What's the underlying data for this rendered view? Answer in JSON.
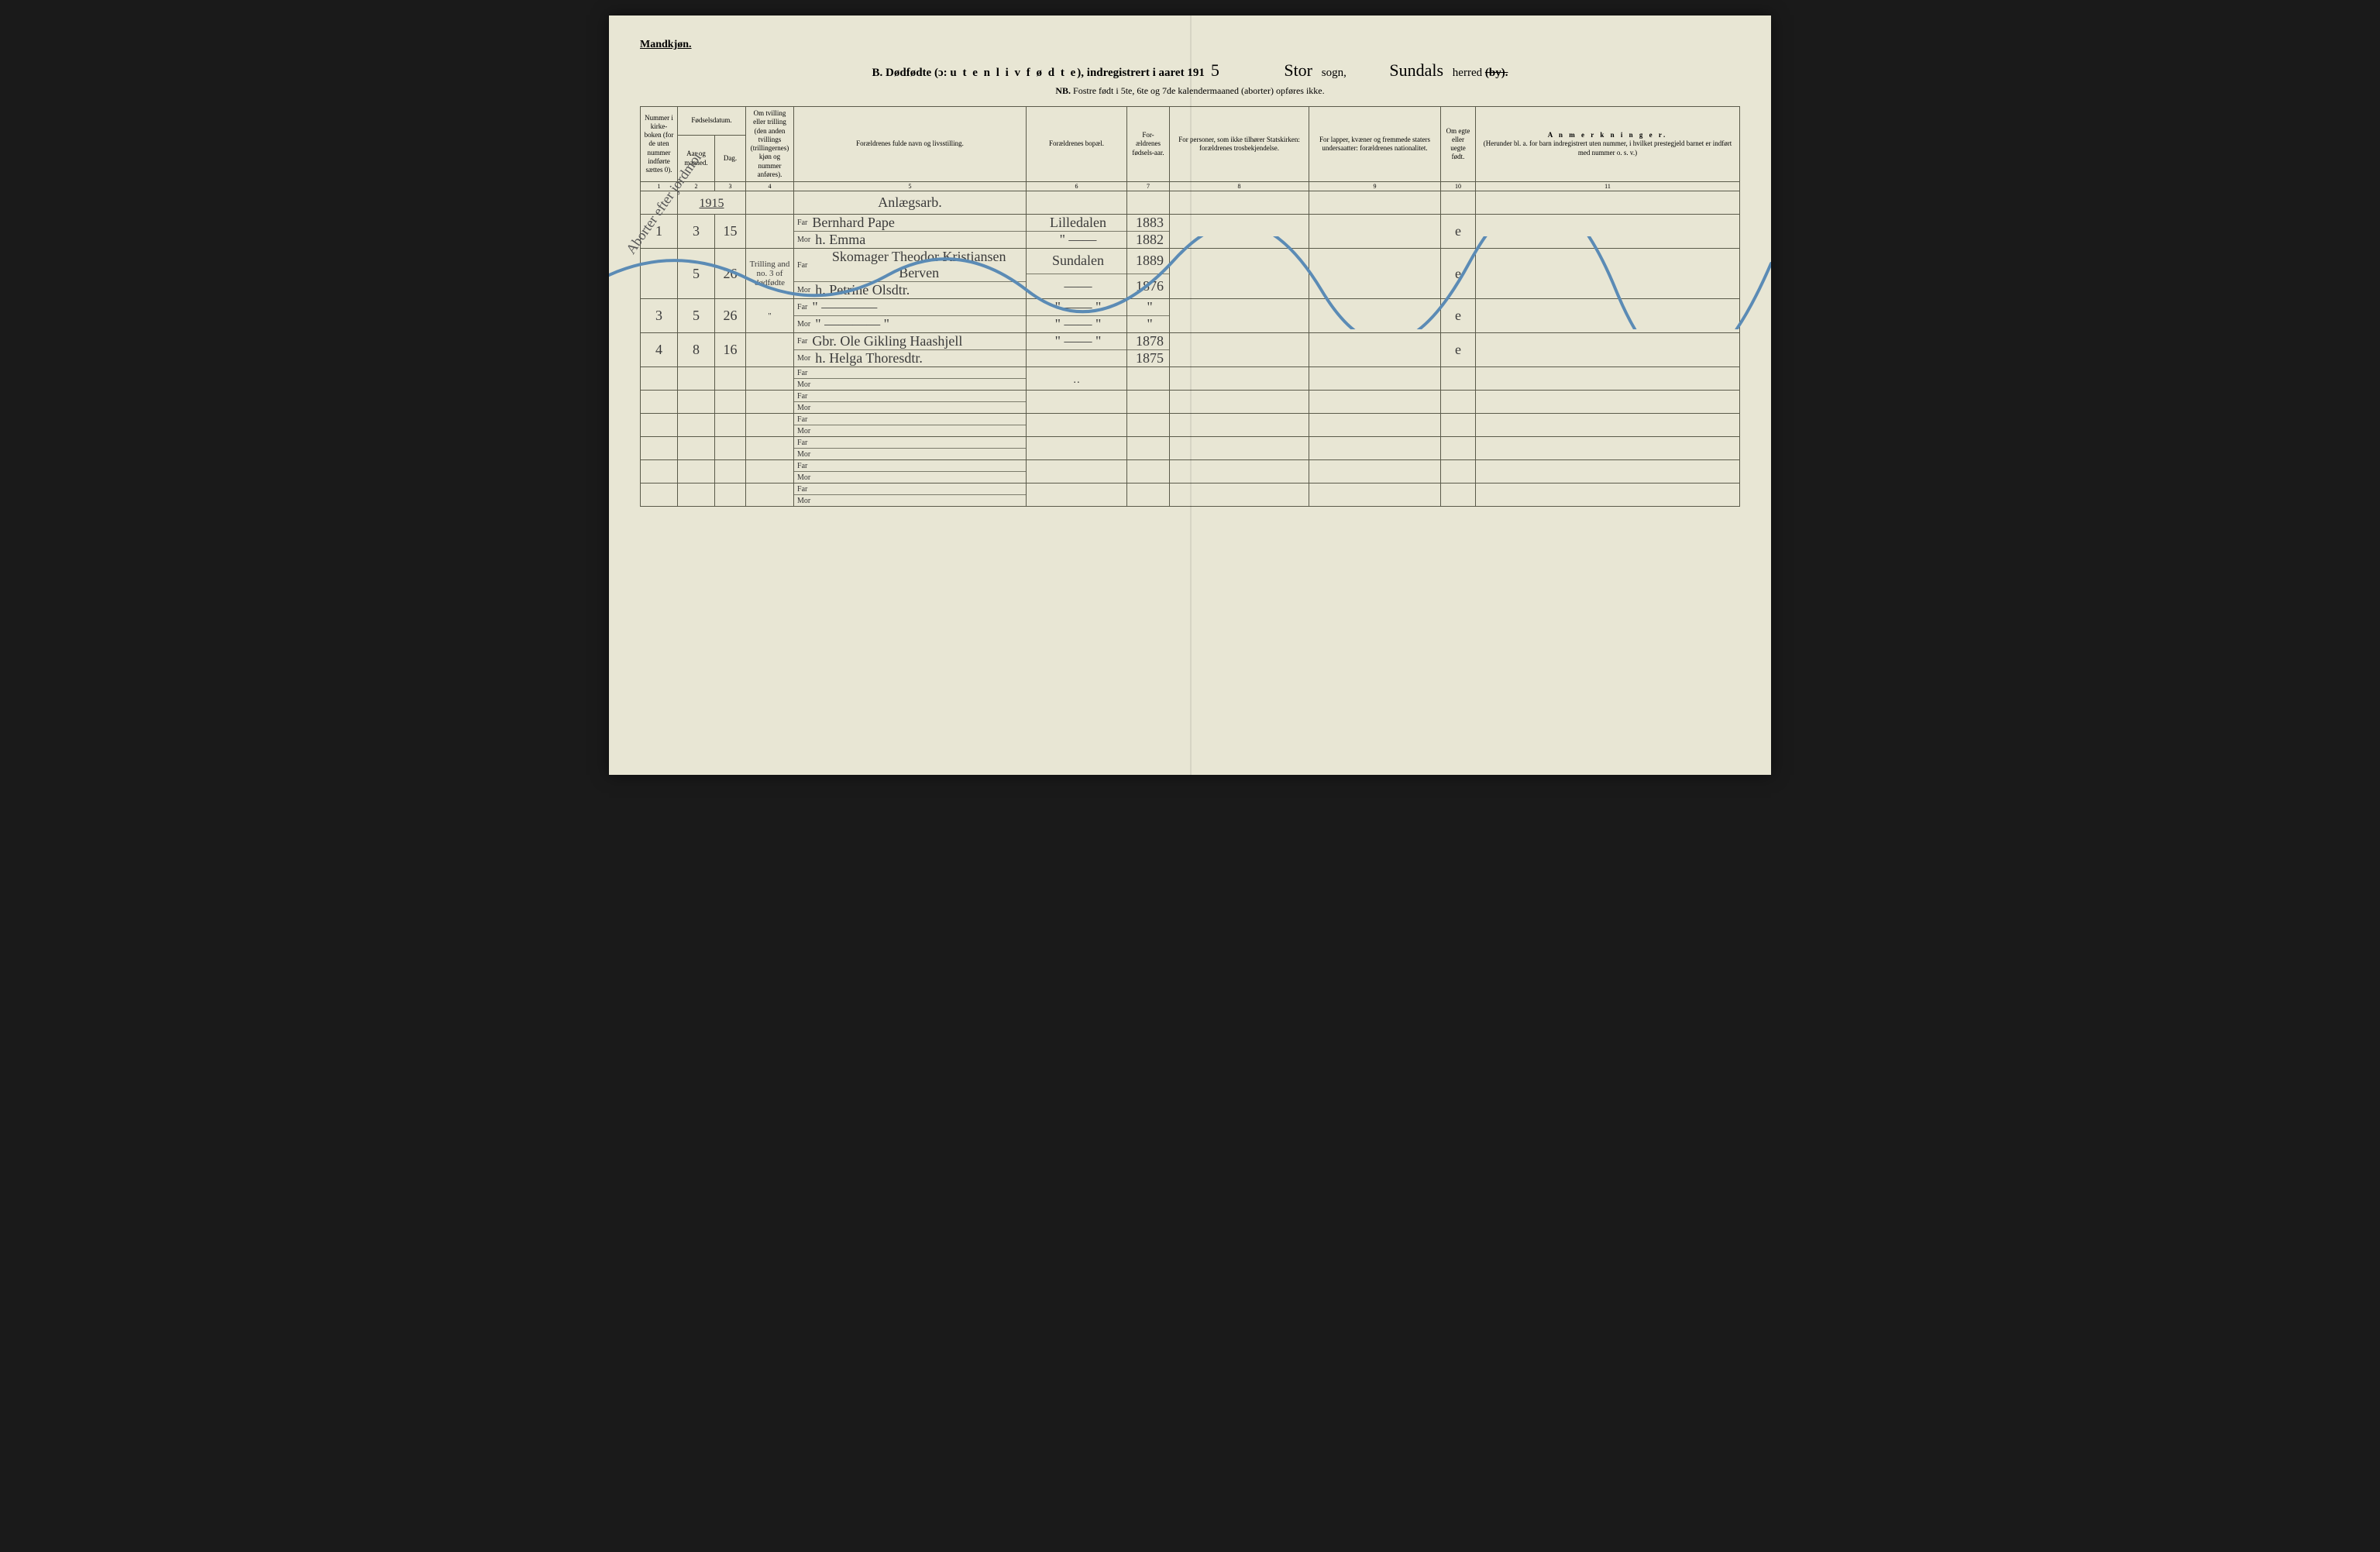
{
  "header_label": "Mandkjøn.",
  "title": {
    "prefix": "B.  Dødfødte (ɔ: ",
    "spaced": "u t e n  l i v  f ø d t e",
    "mid": "), indregistrert i aaret 191",
    "year_digit": "5",
    "sogn_hand": "Stor",
    "sogn_label": "sogn,",
    "herred_hand": "Sundals",
    "herred_label": "herred",
    "by_strike": "(by)."
  },
  "subtitle": {
    "nb": "NB.",
    "text": "Fostre født i 5te, 6te og 7de kalendermaaned (aborter) opføres ikke."
  },
  "columns": {
    "c1": "Nummer i kirke-boken (for de uten nummer indførte sættes 0).",
    "c_date": "Fødselsdatum.",
    "c2": "Aar og maaned.",
    "c3": "Dag.",
    "c4": "Om tvilling eller trilling (den anden tvillings (trillingernes) kjøn og nummer anføres).",
    "c5": "Forældrenes fulde navn og livsstilling.",
    "c6": "Forældrenes bopæl.",
    "c7": "For-ældrenes fødsels-aar.",
    "c8": "For personer, som ikke tilhører Statskirken: forældrenes trosbekjendelse.",
    "c9": "For lapper, kvæner og fremmede staters undersaatter: forældrenes nationalitet.",
    "c10": "Om egte eller uegte født.",
    "c11_title": "A n m e r k n i n g e r.",
    "c11_sub": "(Herunder bl. a. for barn indregistrert uten nummer, i hvilket prestegjeld barnet er indført med nummer o. s. v.)"
  },
  "colnums": [
    "1",
    "2",
    "3",
    "4",
    "5",
    "6",
    "7",
    "8",
    "9",
    "10",
    "11"
  ],
  "year_hand": "1915",
  "far_label": "Far",
  "mor_label": "Mor",
  "side_note": "Aborter efter jordmor",
  "rows": [
    {
      "num": "1",
      "mnd": "3",
      "dag": "15",
      "tvil": "",
      "far_pre": "Anlægsarb.",
      "far": "Bernhard Pape",
      "mor": "h. Emma",
      "bopel_far": "Lilledalen",
      "bopel_mor": "\"  ——",
      "aar_far": "1883",
      "aar_mor": "1882",
      "egte": "e"
    },
    {
      "num": "",
      "mnd": "5",
      "dag": "26",
      "tvil": "Trilling and no. 3 of dødfødte",
      "far_pre": "",
      "far": "Skomager Theodor Kristiansen Berven",
      "mor": "h. Petrine Olsdtr.",
      "bopel_far": "Sundalen",
      "bopel_mor": "——",
      "aar_far": "1889",
      "aar_mor": "1876",
      "egte": "e"
    },
    {
      "num": "3",
      "mnd": "5",
      "dag": "26",
      "tvil": "\"",
      "far_pre": "",
      "far": "\"  ————",
      "mor": "\"  ————  \"",
      "bopel_far": "\"  —— \"",
      "bopel_mor": "\" —— \"",
      "aar_far": "\"",
      "aar_mor": "\"",
      "egte": "e"
    },
    {
      "num": "4",
      "mnd": "8",
      "dag": "16",
      "tvil": "",
      "far_pre": "",
      "far": "Gbr. Ole Gikling Haashjell",
      "mor": "h. Helga Thoresdtr.",
      "bopel_far": "\"  —— \"",
      "bopel_mor": "",
      "aar_far": "1878",
      "aar_mor": "1875",
      "egte": "e"
    }
  ],
  "empty_rows": 6,
  "wave_color": "#5b8bb5",
  "wave_width": 4
}
